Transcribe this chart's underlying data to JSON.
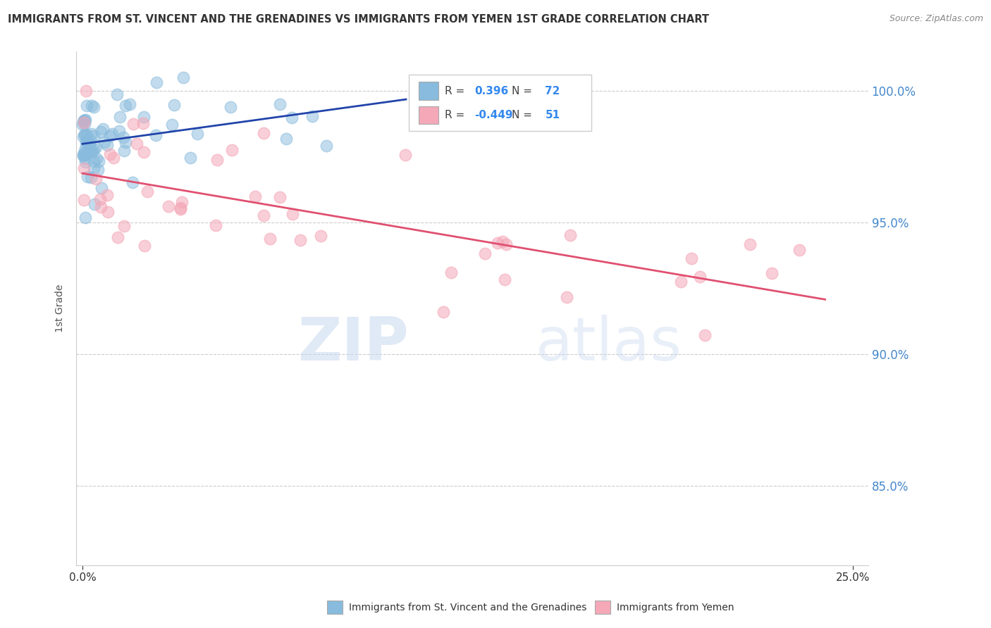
{
  "title": "IMMIGRANTS FROM ST. VINCENT AND THE GRENADINES VS IMMIGRANTS FROM YEMEN 1ST GRADE CORRELATION CHART",
  "source": "Source: ZipAtlas.com",
  "ylabel": "1st Grade",
  "blue_R": 0.396,
  "blue_N": 72,
  "pink_R": -0.449,
  "pink_N": 51,
  "blue_color": "#88bbdd",
  "blue_line_color": "#2244aa",
  "pink_color": "#f4a8b8",
  "pink_line_color": "#e05070",
  "watermark_zip": "ZIP",
  "watermark_atlas": "atlas",
  "legend_label_blue": "Immigrants from St. Vincent and the Grenadines",
  "legend_label_pink": "Immigrants from Yemen",
  "ylim_min": 82.0,
  "ylim_max": 101.5,
  "xlim_min": -0.002,
  "xlim_max": 0.255,
  "yticks": [
    85.0,
    90.0,
    95.0,
    100.0
  ],
  "xticks": [
    0.0,
    0.25
  ],
  "right_yticklabels": [
    "85.0%",
    "90.0%",
    "95.0%",
    "100.0%"
  ],
  "blue_seed": 42,
  "pink_seed": 99
}
